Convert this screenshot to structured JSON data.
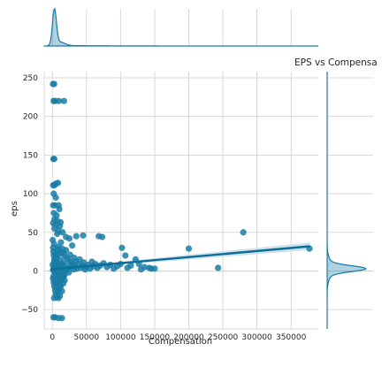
{
  "chart_data": {
    "type": "scatter",
    "title": "EPS vs Compensa",
    "xlabel": "Compensation",
    "ylabel": "eps",
    "xlim": [
      -12000,
      390000
    ],
    "ylim": [
      -75,
      258
    ],
    "xticks": [
      0,
      50000,
      100000,
      150000,
      200000,
      250000,
      300000,
      350000
    ],
    "xtick_labels": [
      "0",
      "50000",
      "100000",
      "150000",
      "200000",
      "250000",
      "300000",
      "350000"
    ],
    "yticks": [
      -50,
      0,
      50,
      100,
      150,
      200,
      250
    ],
    "ytick_labels": [
      "−50",
      "0",
      "50",
      "100",
      "150",
      "200",
      "250"
    ],
    "grid": true,
    "colors": {
      "points": "#1a7ca6",
      "line": "#0a6e96",
      "band": "#c9dcea",
      "kde": "#1a7ca6"
    },
    "regression": {
      "x": [
        -3000,
        378000
      ],
      "y": [
        2,
        32
      ],
      "ci_halfwidth_end": [
        1,
        5
      ]
    },
    "points": [
      [
        900,
        242
      ],
      [
        2600,
        242
      ],
      [
        1800,
        220
      ],
      [
        4000,
        220
      ],
      [
        9200,
        220
      ],
      [
        17000,
        220
      ],
      [
        1500,
        145
      ],
      [
        2700,
        145
      ],
      [
        1100,
        111
      ],
      [
        3100,
        111
      ],
      [
        5100,
        113
      ],
      [
        8100,
        114
      ],
      [
        1200,
        85
      ],
      [
        4200,
        85
      ],
      [
        9200,
        85
      ],
      [
        2100,
        75
      ],
      [
        6100,
        72
      ],
      [
        10200,
        80
      ],
      [
        1000,
        62
      ],
      [
        5000,
        60
      ],
      [
        11000,
        58
      ],
      [
        15000,
        50
      ],
      [
        3000,
        55
      ],
      [
        7000,
        48
      ],
      [
        20000,
        44
      ],
      [
        25000,
        42
      ],
      [
        35000,
        45
      ],
      [
        45000,
        46
      ],
      [
        68000,
        45
      ],
      [
        73000,
        44
      ],
      [
        102000,
        30
      ],
      [
        107000,
        20
      ],
      [
        122000,
        15
      ],
      [
        127000,
        9
      ],
      [
        142000,
        4
      ],
      [
        145000,
        3
      ],
      [
        200000,
        29
      ],
      [
        280000,
        50
      ],
      [
        243000,
        4
      ],
      [
        377000,
        29
      ],
      [
        500,
        40
      ],
      [
        1000,
        30
      ],
      [
        1500,
        25
      ],
      [
        2000,
        20
      ],
      [
        2500,
        35
      ],
      [
        3000,
        15
      ],
      [
        3500,
        10
      ],
      [
        4000,
        5
      ],
      [
        4500,
        0
      ],
      [
        5000,
        -5
      ],
      [
        5500,
        12
      ],
      [
        6000,
        18
      ],
      [
        6500,
        22
      ],
      [
        7000,
        8
      ],
      [
        7500,
        -8
      ],
      [
        8000,
        3
      ],
      [
        8500,
        28
      ],
      [
        9000,
        -12
      ],
      [
        10000,
        6
      ],
      [
        11000,
        14
      ],
      [
        12000,
        -3
      ],
      [
        13000,
        9
      ],
      [
        14000,
        24
      ],
      [
        15000,
        2
      ],
      [
        16000,
        11
      ],
      [
        17000,
        -6
      ],
      [
        18000,
        19
      ],
      [
        19000,
        7
      ],
      [
        20000,
        27
      ],
      [
        21000,
        1
      ],
      [
        22000,
        16
      ],
      [
        23000,
        4
      ],
      [
        24000,
        -2
      ],
      [
        25000,
        13
      ],
      [
        26000,
        21
      ],
      [
        27000,
        5
      ],
      [
        28000,
        10
      ],
      [
        29000,
        33
      ],
      [
        30000,
        8
      ],
      [
        31000,
        2
      ],
      [
        32000,
        17
      ],
      [
        33000,
        6
      ],
      [
        34000,
        12
      ],
      [
        36000,
        3
      ],
      [
        38000,
        9
      ],
      [
        40000,
        15
      ],
      [
        42000,
        4
      ],
      [
        44000,
        7
      ],
      [
        46000,
        11
      ],
      [
        48000,
        2
      ],
      [
        50000,
        5
      ],
      [
        52000,
        8
      ],
      [
        55000,
        3
      ],
      [
        58000,
        12
      ],
      [
        60000,
        6
      ],
      [
        63000,
        9
      ],
      [
        66000,
        4
      ],
      [
        70000,
        7
      ],
      [
        75000,
        10
      ],
      [
        80000,
        5
      ],
      [
        85000,
        8
      ],
      [
        90000,
        3
      ],
      [
        95000,
        6
      ],
      [
        100000,
        9
      ],
      [
        110000,
        4
      ],
      [
        115000,
        7
      ],
      [
        130000,
        2
      ],
      [
        135000,
        5
      ],
      [
        150000,
        3
      ],
      [
        1000,
        -10
      ],
      [
        2000,
        -15
      ],
      [
        3000,
        -20
      ],
      [
        4000,
        -25
      ],
      [
        5000,
        -30
      ],
      [
        6000,
        -22
      ],
      [
        7000,
        -18
      ],
      [
        8000,
        -28
      ],
      [
        9000,
        -35
      ],
      [
        10000,
        -14
      ],
      [
        12000,
        -20
      ],
      [
        14000,
        -26
      ],
      [
        16000,
        -16
      ],
      [
        18000,
        -12
      ],
      [
        11000,
        -32
      ],
      [
        13000,
        -9
      ],
      [
        2500,
        -35
      ],
      [
        6500,
        -33
      ],
      [
        1500,
        -60
      ],
      [
        4000,
        -60
      ],
      [
        9000,
        -61
      ],
      [
        14000,
        -61
      ],
      [
        3000,
        67
      ],
      [
        7000,
        65
      ],
      [
        12000,
        63
      ],
      [
        5000,
        95
      ],
      [
        2000,
        100
      ],
      [
        9000,
        52
      ],
      [
        1000,
        1
      ],
      [
        2000,
        4
      ],
      [
        3000,
        -1
      ],
      [
        4000,
        2
      ],
      [
        5000,
        6
      ],
      [
        6000,
        -4
      ],
      [
        7000,
        0
      ],
      [
        8000,
        7
      ],
      [
        9000,
        3
      ],
      [
        10000,
        -2
      ],
      [
        11000,
        5
      ],
      [
        12000,
        1
      ],
      [
        13000,
        -6
      ],
      [
        14000,
        8
      ],
      [
        15000,
        0
      ],
      [
        16000,
        4
      ],
      [
        17000,
        2
      ],
      [
        18000,
        -1
      ],
      [
        500,
        8
      ],
      [
        1500,
        -7
      ],
      [
        2500,
        12
      ],
      [
        3500,
        -13
      ],
      [
        4500,
        18
      ],
      [
        5500,
        -17
      ],
      [
        6500,
        26
      ],
      [
        7500,
        -21
      ],
      [
        8500,
        31
      ],
      [
        9500,
        -24
      ],
      [
        10500,
        22
      ],
      [
        11500,
        -19
      ],
      [
        12500,
        37
      ],
      [
        13500,
        -11
      ],
      [
        14500,
        29
      ],
      [
        15500,
        -8
      ],
      [
        16500,
        23
      ],
      [
        17500,
        -5
      ]
    ]
  }
}
